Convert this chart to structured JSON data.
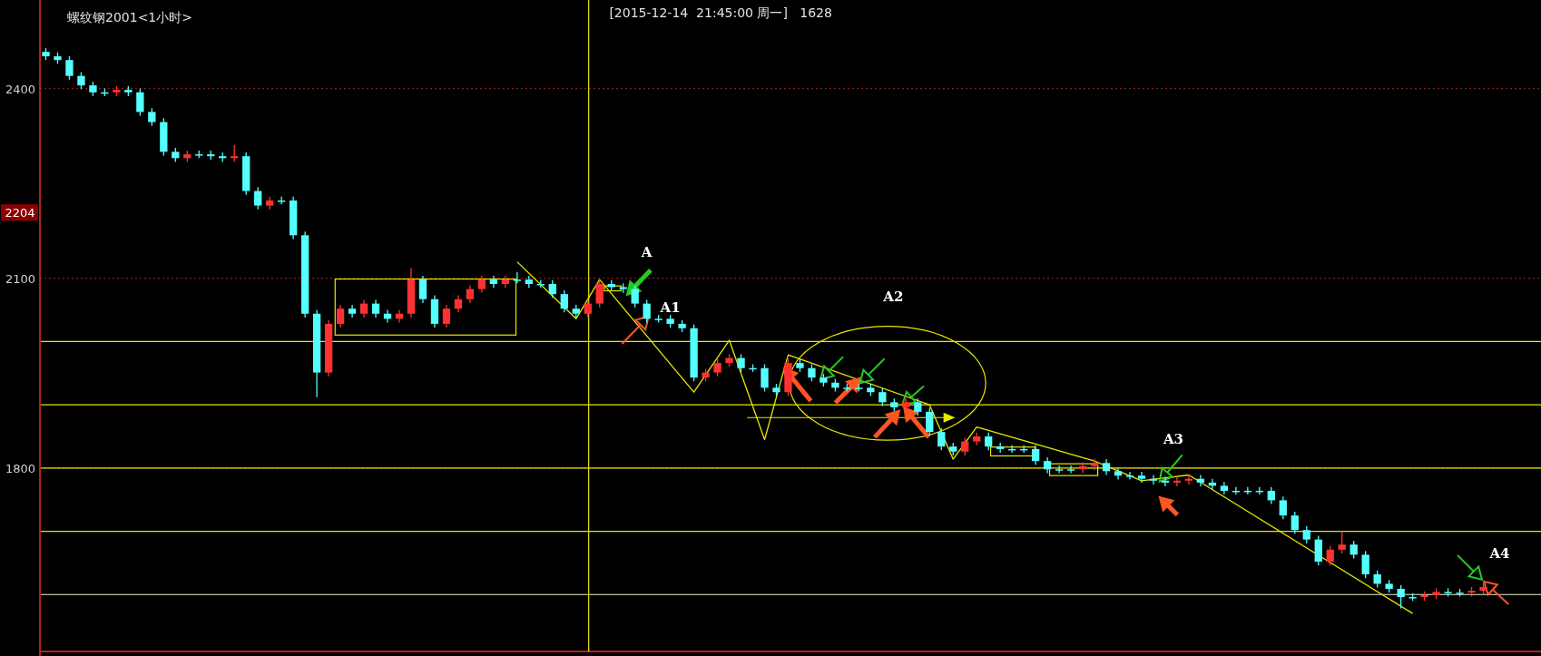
{
  "chart_data": {
    "type": "candlestick",
    "title": "螺纹钢2001<1小时>",
    "categories": [
      null,
      null,
      null,
      null,
      null,
      null,
      null,
      null,
      null,
      null,
      null,
      null,
      null,
      null,
      null,
      null,
      null,
      null,
      null,
      null,
      null,
      null,
      null,
      null,
      null,
      null,
      null,
      null,
      null,
      null,
      null,
      null,
      null,
      null,
      null,
      null,
      null,
      null,
      null,
      null,
      null,
      null,
      null,
      null,
      null,
      null,
      null,
      null,
      null,
      null,
      null,
      null,
      null,
      null,
      null,
      null,
      null,
      null,
      null,
      null,
      null,
      null,
      null,
      null,
      null,
      null,
      null,
      null,
      null,
      null,
      null,
      null,
      null,
      null,
      null,
      null,
      null,
      null,
      null,
      null,
      null,
      null,
      null,
      null,
      null,
      null,
      null,
      null,
      null,
      null,
      null,
      null,
      null,
      null,
      null,
      null,
      null,
      null,
      null,
      null,
      null,
      null,
      null,
      null,
      null,
      null,
      null,
      null,
      null,
      null,
      null,
      null,
      null,
      null,
      null,
      null,
      null,
      null,
      null,
      null,
      null,
      null,
      null
    ],
    "ohlc": [
      [
        2458,
        2464,
        2445,
        2451
      ],
      [
        2451,
        2457,
        2439,
        2445
      ],
      [
        2445,
        2451,
        2414,
        2420
      ],
      [
        2420,
        2426,
        2399,
        2405
      ],
      [
        2405,
        2411,
        2388,
        2394
      ],
      [
        2394,
        2400,
        2388,
        2394
      ],
      [
        2394,
        2404,
        2388,
        2398
      ],
      [
        2398,
        2404,
        2388,
        2394
      ],
      [
        2394,
        2400,
        2357,
        2363
      ],
      [
        2363,
        2369,
        2341,
        2347
      ],
      [
        2347,
        2353,
        2294,
        2300
      ],
      [
        2300,
        2306,
        2284,
        2290
      ],
      [
        2290,
        2302,
        2284,
        2296
      ],
      [
        2296,
        2302,
        2290,
        2296
      ],
      [
        2296,
        2302,
        2287,
        2293
      ],
      [
        2293,
        2299,
        2284,
        2290
      ],
      [
        2290,
        2311,
        2284,
        2293
      ],
      [
        2293,
        2299,
        2232,
        2238
      ],
      [
        2238,
        2244,
        2209,
        2215
      ],
      [
        2215,
        2229,
        2209,
        2223
      ],
      [
        2223,
        2229,
        2217,
        2223
      ],
      [
        2223,
        2229,
        2162,
        2168
      ],
      [
        2168,
        2174,
        2038,
        2044
      ],
      [
        2044,
        2050,
        1912,
        1951
      ],
      [
        1951,
        2034,
        1945,
        2028
      ],
      [
        2028,
        2058,
        2022,
        2052
      ],
      [
        2052,
        2058,
        2038,
        2044
      ],
      [
        2044,
        2066,
        2038,
        2060
      ],
      [
        2060,
        2066,
        2038,
        2044
      ],
      [
        2044,
        2050,
        2030,
        2036
      ],
      [
        2036,
        2050,
        2030,
        2044
      ],
      [
        2044,
        2116,
        2038,
        2098
      ],
      [
        2098,
        2104,
        2061,
        2067
      ],
      [
        2067,
        2073,
        2022,
        2028
      ],
      [
        2028,
        2058,
        2022,
        2052
      ],
      [
        2052,
        2073,
        2046,
        2067
      ],
      [
        2067,
        2089,
        2061,
        2083
      ],
      [
        2083,
        2104,
        2077,
        2098
      ],
      [
        2098,
        2104,
        2085,
        2091
      ],
      [
        2091,
        2104,
        2085,
        2098
      ],
      [
        2098,
        2110,
        2092,
        2098
      ],
      [
        2098,
        2104,
        2085,
        2091
      ],
      [
        2091,
        2097,
        2085,
        2091
      ],
      [
        2091,
        2097,
        2069,
        2075
      ],
      [
        2075,
        2081,
        2046,
        2052
      ],
      [
        2052,
        2058,
        2038,
        2044
      ],
      [
        2044,
        2066,
        2038,
        2060
      ],
      [
        2060,
        2097,
        2054,
        2091
      ],
      [
        2091,
        2097,
        2080,
        2086
      ],
      [
        2086,
        2092,
        2077,
        2083
      ],
      [
        2083,
        2089,
        2054,
        2060
      ],
      [
        2060,
        2066,
        2030,
        2036
      ],
      [
        2036,
        2042,
        2030,
        2036
      ],
      [
        2036,
        2042,
        2022,
        2028
      ],
      [
        2028,
        2034,
        2015,
        2021
      ],
      [
        2021,
        2027,
        1937,
        1943
      ],
      [
        1943,
        1957,
        1937,
        1951
      ],
      [
        1951,
        1972,
        1945,
        1966
      ],
      [
        1966,
        1980,
        1960,
        1974
      ],
      [
        1974,
        1980,
        1952,
        1958
      ],
      [
        1958,
        1964,
        1952,
        1958
      ],
      [
        1958,
        1964,
        1921,
        1927
      ],
      [
        1927,
        1933,
        1914,
        1920
      ],
      [
        1920,
        1972,
        1914,
        1966
      ],
      [
        1966,
        1972,
        1952,
        1958
      ],
      [
        1958,
        1964,
        1937,
        1943
      ],
      [
        1943,
        1949,
        1929,
        1935
      ],
      [
        1935,
        1941,
        1921,
        1927
      ],
      [
        1927,
        1933,
        1921,
        1927
      ],
      [
        1927,
        1933,
        1921,
        1927
      ],
      [
        1927,
        1933,
        1914,
        1920
      ],
      [
        1920,
        1926,
        1898,
        1904
      ],
      [
        1904,
        1910,
        1890,
        1896
      ],
      [
        1896,
        1910,
        1890,
        1904
      ],
      [
        1904,
        1910,
        1883,
        1889
      ],
      [
        1889,
        1895,
        1851,
        1857
      ],
      [
        1857,
        1863,
        1828,
        1834
      ],
      [
        1834,
        1840,
        1820,
        1826
      ],
      [
        1826,
        1848,
        1820,
        1842
      ],
      [
        1842,
        1856,
        1836,
        1850
      ],
      [
        1850,
        1856,
        1828,
        1834
      ],
      [
        1834,
        1840,
        1824,
        1830
      ],
      [
        1830,
        1836,
        1824,
        1830
      ],
      [
        1830,
        1836,
        1824,
        1830
      ],
      [
        1830,
        1836,
        1805,
        1811
      ],
      [
        1811,
        1817,
        1792,
        1798
      ],
      [
        1798,
        1804,
        1792,
        1798
      ],
      [
        1798,
        1804,
        1792,
        1798
      ],
      [
        1798,
        1809,
        1792,
        1803
      ],
      [
        1803,
        1814,
        1797,
        1808
      ],
      [
        1808,
        1814,
        1789,
        1795
      ],
      [
        1795,
        1801,
        1782,
        1788
      ],
      [
        1788,
        1794,
        1782,
        1788
      ],
      [
        1788,
        1794,
        1777,
        1783
      ],
      [
        1783,
        1789,
        1774,
        1780
      ],
      [
        1780,
        1786,
        1771,
        1777
      ],
      [
        1777,
        1786,
        1771,
        1780
      ],
      [
        1780,
        1789,
        1774,
        1783
      ],
      [
        1783,
        1789,
        1771,
        1777
      ],
      [
        1777,
        1783,
        1766,
        1772
      ],
      [
        1772,
        1778,
        1758,
        1764
      ],
      [
        1764,
        1770,
        1758,
        1764
      ],
      [
        1764,
        1770,
        1758,
        1764
      ],
      [
        1764,
        1770,
        1758,
        1764
      ],
      [
        1764,
        1770,
        1743,
        1749
      ],
      [
        1749,
        1755,
        1719,
        1725
      ],
      [
        1725,
        1731,
        1696,
        1702
      ],
      [
        1702,
        1708,
        1681,
        1687
      ],
      [
        1687,
        1693,
        1646,
        1652
      ],
      [
        1652,
        1677,
        1646,
        1671
      ],
      [
        1671,
        1700,
        1665,
        1679
      ],
      [
        1679,
        1685,
        1657,
        1663
      ],
      [
        1663,
        1669,
        1626,
        1632
      ],
      [
        1632,
        1638,
        1611,
        1617
      ],
      [
        1617,
        1623,
        1603,
        1609
      ],
      [
        1609,
        1615,
        1578,
        1596
      ],
      [
        1596,
        1602,
        1590,
        1596
      ],
      [
        1596,
        1605,
        1590,
        1599
      ],
      [
        1599,
        1610,
        1593,
        1604
      ],
      [
        1604,
        1610,
        1597,
        1603
      ],
      [
        1603,
        1609,
        1597,
        1603
      ],
      [
        1603,
        1612,
        1597,
        1606
      ],
      [
        1606,
        1618,
        1600,
        1612
      ]
    ],
    "colors": [
      "#54ffff",
      "#54ffff",
      "#54ffff",
      "#54ffff",
      "#54ffff",
      "#54ffff",
      "#ff3232",
      "#54ffff",
      "#54ffff",
      "#54ffff",
      "#54ffff",
      "#54ffff",
      "#ff3232",
      "#54ffff",
      "#54ffff",
      "#54ffff",
      "#ff3232",
      "#54ffff",
      "#54ffff",
      "#ff3232",
      "#54ffff",
      "#54ffff",
      "#54ffff",
      "#54ffff",
      "#ff3232",
      "#ff3232",
      "#54ffff",
      "#ff3232",
      "#54ffff",
      "#54ffff",
      "#ff3232",
      "#ff3232",
      "#54ffff",
      "#54ffff",
      "#ff3232",
      "#ff3232",
      "#ff3232",
      "#ff3232",
      "#54ffff",
      "#ff3232",
      "#54ffff",
      "#54ffff",
      "#54ffff",
      "#54ffff",
      "#54ffff",
      "#54ffff",
      "#ff3232",
      "#ff3232",
      "#54ffff",
      "#54ffff",
      "#54ffff",
      "#54ffff",
      "#54ffff",
      "#54ffff",
      "#54ffff",
      "#54ffff",
      "#ff3232",
      "#ff3232",
      "#ff3232",
      "#54ffff",
      "#54ffff",
      "#54ffff",
      "#54ffff",
      "#ff3232",
      "#54ffff",
      "#54ffff",
      "#54ffff",
      "#54ffff",
      "#54ffff",
      "#54ffff",
      "#54ffff",
      "#54ffff",
      "#54ffff",
      "#ff3232",
      "#54ffff",
      "#54ffff",
      "#54ffff",
      "#54ffff",
      "#ff3232",
      "#ff3232",
      "#54ffff",
      "#54ffff",
      "#54ffff",
      "#54ffff",
      "#54ffff",
      "#54ffff",
      "#54ffff",
      "#54ffff",
      "#ff3232",
      "#ff3232",
      "#54ffff",
      "#54ffff",
      "#54ffff",
      "#54ffff",
      "#54ffff",
      "#54ffff",
      "#ff3232",
      "#ff3232",
      "#54ffff",
      "#54ffff",
      "#54ffff",
      "#54ffff",
      "#54ffff",
      "#54ffff",
      "#54ffff",
      "#54ffff",
      "#54ffff",
      "#54ffff",
      "#54ffff",
      "#ff3232",
      "#ff3232",
      "#54ffff",
      "#54ffff",
      "#54ffff",
      "#54ffff",
      "#54ffff",
      "#54ffff",
      "#ff3232",
      "#ff3232",
      "#54ffff",
      "#54ffff",
      "#ff3232",
      "#ff3232"
    ],
    "series": [
      {
        "type": "line",
        "color": "#e8e800",
        "values": [
          null,
          null,
          null,
          null,
          null,
          null,
          null,
          null,
          null,
          null,
          null,
          null,
          null,
          null,
          null,
          null,
          null,
          null,
          null,
          null,
          null,
          null,
          null,
          null,
          null,
          null,
          null,
          null,
          null,
          null,
          null,
          null,
          null,
          null,
          null,
          null,
          null,
          null,
          null,
          null,
          2126,
          null,
          null,
          null,
          null,
          2036,
          null,
          2098,
          null,
          null,
          null,
          null,
          null,
          null,
          null,
          1920,
          null,
          null,
          2002,
          null,
          null,
          1845,
          null,
          1979,
          null,
          null,
          null,
          null,
          null,
          null,
          null,
          null,
          null,
          null,
          null,
          1900,
          null,
          1814,
          null,
          1865,
          null,
          null,
          null,
          null,
          null,
          null,
          null,
          null,
          null,
          1811,
          null,
          null,
          null,
          1780,
          null,
          null,
          null,
          1789,
          null,
          null,
          null,
          null,
          null,
          null,
          null,
          null,
          null,
          null,
          null,
          null,
          null,
          null,
          null,
          null,
          null,
          null,
          1570,
          null,
          null,
          null,
          null,
          null,
          null
        ]
      }
    ],
    "ylim": [
      1510,
      2540
    ],
    "yticks": [
      1800,
      2100,
      2400
    ],
    "grid": "y",
    "tick_labels": "y",
    "ref_lines": [
      {
        "axis": "y",
        "value": 2000,
        "color": "#e8e800"
      },
      {
        "axis": "y",
        "value": 1900,
        "color": "#e8e800"
      },
      {
        "axis": "y",
        "value": 1800,
        "color": "#e8e800"
      },
      {
        "axis": "y",
        "value": 1700,
        "color": "#e8e800"
      },
      {
        "axis": "y",
        "value": 1600,
        "color": "#f0f0d0"
      }
    ],
    "annotations": [
      "[2015-12-14  21:45:00 周一]   1628",
      {
        "text": "2204",
        "y": 2204
      },
      "A",
      "A1",
      "A2",
      "A3",
      "A4"
    ]
  }
}
